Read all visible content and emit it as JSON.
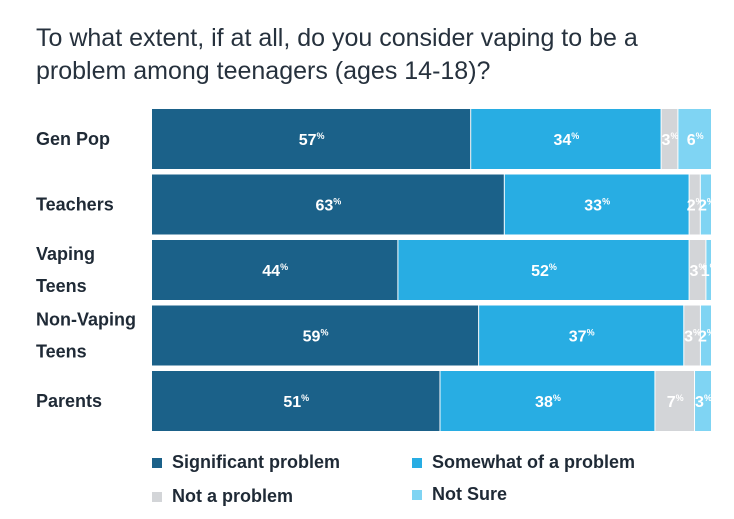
{
  "title": "To what extent, if at all, do you consider vaping to be a problem among teenagers (ages 14-18)?",
  "chart_data": {
    "type": "bar",
    "orientation": "horizontal",
    "stacked": true,
    "normalized": true,
    "title": "To what extent, if at all, do you consider vaping to be a problem among teenagers (ages 14-18)?",
    "categories": [
      [
        "Gen Pop"
      ],
      [
        "Teachers"
      ],
      [
        "Vaping",
        "Teens"
      ],
      [
        "Non-Vaping",
        "Teens"
      ],
      [
        "Parents"
      ]
    ],
    "unit": "%",
    "series": [
      {
        "name": "Significant problem",
        "color": "#1b6189",
        "values": [
          57,
          63,
          44,
          59,
          51
        ]
      },
      {
        "name": "Somewhat of a problem",
        "color": "#28ade3",
        "values": [
          34,
          33,
          52,
          37,
          38
        ]
      },
      {
        "name": "Not a problem",
        "color": "#d3d5d8",
        "values": [
          3,
          2,
          3,
          3,
          7
        ]
      },
      {
        "name": "Not Sure",
        "color": "#7fd4f3",
        "values": [
          6,
          2,
          1,
          2,
          3
        ]
      }
    ],
    "legend_position": "bottom",
    "grid": false
  }
}
